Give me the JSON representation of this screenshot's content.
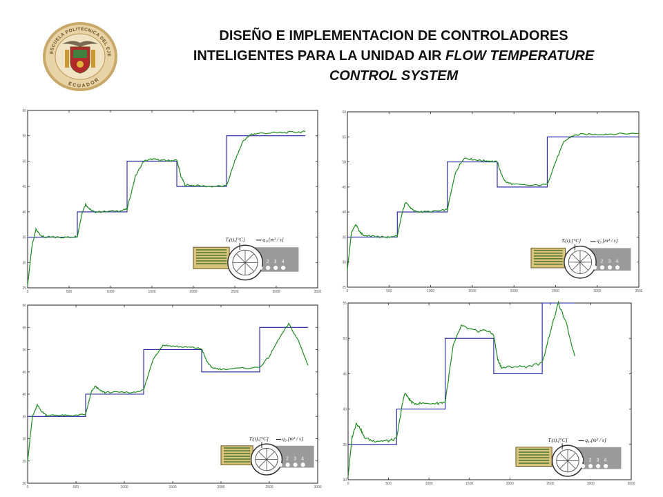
{
  "header": {
    "title_line1": "DISEÑO E IMPLEMENTACION DE CONTROLADORES",
    "title_line2_plain": "INTELIGENTES PARA LA UNIDAD AIR ",
    "title_line2_italic": "FLOW TEMPERATURE",
    "title_line3_italic": "CONTROL SYSTEM",
    "logo": {
      "icon": "university-crest",
      "text_top": "ESCUELA POLITECNICA DEL EJERCITO",
      "text_bottom": "ECUADOR"
    }
  },
  "inset": {
    "temp_label": "Tᵢ(t),[°C]",
    "numbers": [
      "1",
      "2",
      "3",
      "4"
    ],
    "flow_labels": [
      "q₁,[m³ / s]",
      "q₂,[m³ / s]",
      "q₃,[m³ / s]",
      "q₄,[m³ / s]"
    ]
  },
  "colors": {
    "setpoint": "#1f1fa0",
    "response": "#1e8a1e",
    "axis": "#222222",
    "tick_text": "#555555"
  },
  "chart_data": [
    {
      "type": "line",
      "xlim": [
        0,
        3500
      ],
      "ylim": [
        25,
        60
      ],
      "xticks": [
        0,
        500,
        1000,
        1500,
        2000,
        2500,
        3000,
        3500
      ],
      "yticks": [
        25,
        30,
        35,
        40,
        45,
        50,
        55,
        60
      ],
      "series": [
        {
          "role": "setpoint",
          "x": [
            0,
            600,
            600,
            1200,
            1200,
            1800,
            1800,
            2400,
            2400,
            3350
          ],
          "y": [
            35,
            35,
            40,
            40,
            50,
            50,
            45,
            45,
            55,
            55
          ]
        },
        {
          "role": "response",
          "x": [
            0,
            50,
            100,
            150,
            200,
            300,
            400,
            500,
            600,
            660,
            700,
            750,
            800,
            900,
            1100,
            1200,
            1300,
            1400,
            1500,
            1600,
            1700,
            1800,
            1850,
            1900,
            2000,
            2200,
            2400,
            2500,
            2600,
            2700,
            2800,
            3000,
            3200,
            3350
          ],
          "y": [
            25.5,
            33,
            36.5,
            35.5,
            35,
            35,
            35,
            35,
            35.2,
            40,
            41.5,
            40.5,
            40,
            40,
            40.2,
            40.5,
            47,
            50,
            50.4,
            50.2,
            50.1,
            50.2,
            47,
            45.3,
            45.2,
            45,
            45.1,
            50,
            54,
            55.3,
            55.5,
            55.6,
            55.7,
            55.8
          ]
        }
      ]
    },
    {
      "type": "line",
      "xlim": [
        0,
        3500
      ],
      "ylim": [
        25,
        60
      ],
      "xticks": [
        0,
        500,
        1000,
        1500,
        2000,
        2500,
        3000,
        3500
      ],
      "yticks": [
        25,
        30,
        35,
        40,
        45,
        50,
        55,
        60
      ],
      "series": [
        {
          "role": "setpoint",
          "x": [
            0,
            600,
            600,
            1200,
            1200,
            1800,
            1800,
            2400,
            2400,
            3500
          ],
          "y": [
            35,
            35,
            40,
            40,
            50,
            50,
            45,
            45,
            55,
            55
          ]
        },
        {
          "role": "response",
          "x": [
            0,
            50,
            100,
            150,
            200,
            300,
            400,
            500,
            600,
            660,
            700,
            750,
            800,
            900,
            1100,
            1200,
            1300,
            1400,
            1500,
            1600,
            1700,
            1800,
            1850,
            1900,
            2000,
            2200,
            2400,
            2500,
            2600,
            2700,
            2800,
            3000,
            3200,
            3500
          ],
          "y": [
            28.5,
            36,
            37.5,
            36,
            35.3,
            35.2,
            35,
            35,
            35.2,
            40,
            42,
            41,
            40.2,
            40,
            40.2,
            40.5,
            48,
            50.8,
            50.5,
            50.3,
            50.2,
            50,
            47.5,
            46,
            45.5,
            45.3,
            45.5,
            50,
            54,
            55.2,
            55.5,
            55.5,
            55.6,
            55.7
          ]
        }
      ]
    },
    {
      "type": "line",
      "xlim": [
        0,
        3000
      ],
      "ylim": [
        20,
        60
      ],
      "xticks": [
        0,
        500,
        1000,
        1500,
        2000,
        2500,
        3000
      ],
      "yticks": [
        20,
        25,
        30,
        35,
        40,
        45,
        50,
        55,
        60
      ],
      "series": [
        {
          "role": "setpoint",
          "x": [
            0,
            600,
            600,
            1200,
            1200,
            1800,
            1800,
            2400,
            2400,
            2900
          ],
          "y": [
            35,
            35,
            40,
            40,
            50,
            50,
            45,
            45,
            55,
            55
          ]
        },
        {
          "role": "response",
          "x": [
            0,
            50,
            100,
            150,
            200,
            300,
            400,
            500,
            600,
            660,
            700,
            750,
            800,
            900,
            1100,
            1200,
            1300,
            1400,
            1500,
            1600,
            1700,
            1800,
            1850,
            1900,
            2000,
            2200,
            2400,
            2500,
            2600,
            2700,
            2800,
            2900
          ],
          "y": [
            25,
            35,
            37.5,
            36,
            35.2,
            35.3,
            35.2,
            35.2,
            35.5,
            40.5,
            41.8,
            40.8,
            40.4,
            40.4,
            40.4,
            41,
            48,
            51,
            50.8,
            50.6,
            50.5,
            50.2,
            47.5,
            46,
            45.6,
            45.8,
            46,
            48.5,
            52.5,
            55.8,
            52,
            46.5
          ]
        }
      ]
    },
    {
      "type": "line",
      "xlim": [
        0,
        3500
      ],
      "ylim": [
        30,
        55
      ],
      "xticks": [
        0,
        500,
        1000,
        1500,
        2000,
        2500,
        3000,
        3500
      ],
      "yticks": [
        30,
        35,
        40,
        45,
        50,
        55
      ],
      "series": [
        {
          "role": "setpoint",
          "x": [
            0,
            600,
            600,
            1200,
            1200,
            1800,
            1800,
            2400,
            2400,
            2800
          ],
          "y": [
            35,
            35,
            40,
            40,
            50,
            50,
            45,
            45,
            55,
            55
          ]
        },
        {
          "role": "response",
          "x": [
            0,
            50,
            100,
            150,
            200,
            300,
            400,
            500,
            600,
            660,
            700,
            750,
            800,
            900,
            1100,
            1200,
            1300,
            1400,
            1500,
            1600,
            1700,
            1800,
            1850,
            1900,
            2000,
            2200,
            2400,
            2500,
            2600,
            2700,
            2800
          ],
          "y": [
            30.5,
            36,
            38,
            37.3,
            36,
            35.5,
            35.5,
            35.5,
            35.8,
            40,
            42.3,
            41.5,
            40.8,
            40.8,
            40.8,
            41,
            49,
            51.8,
            51.3,
            51,
            51.2,
            50.5,
            47,
            45.8,
            46,
            46,
            46.5,
            51,
            55,
            52,
            47.5
          ]
        }
      ]
    }
  ]
}
